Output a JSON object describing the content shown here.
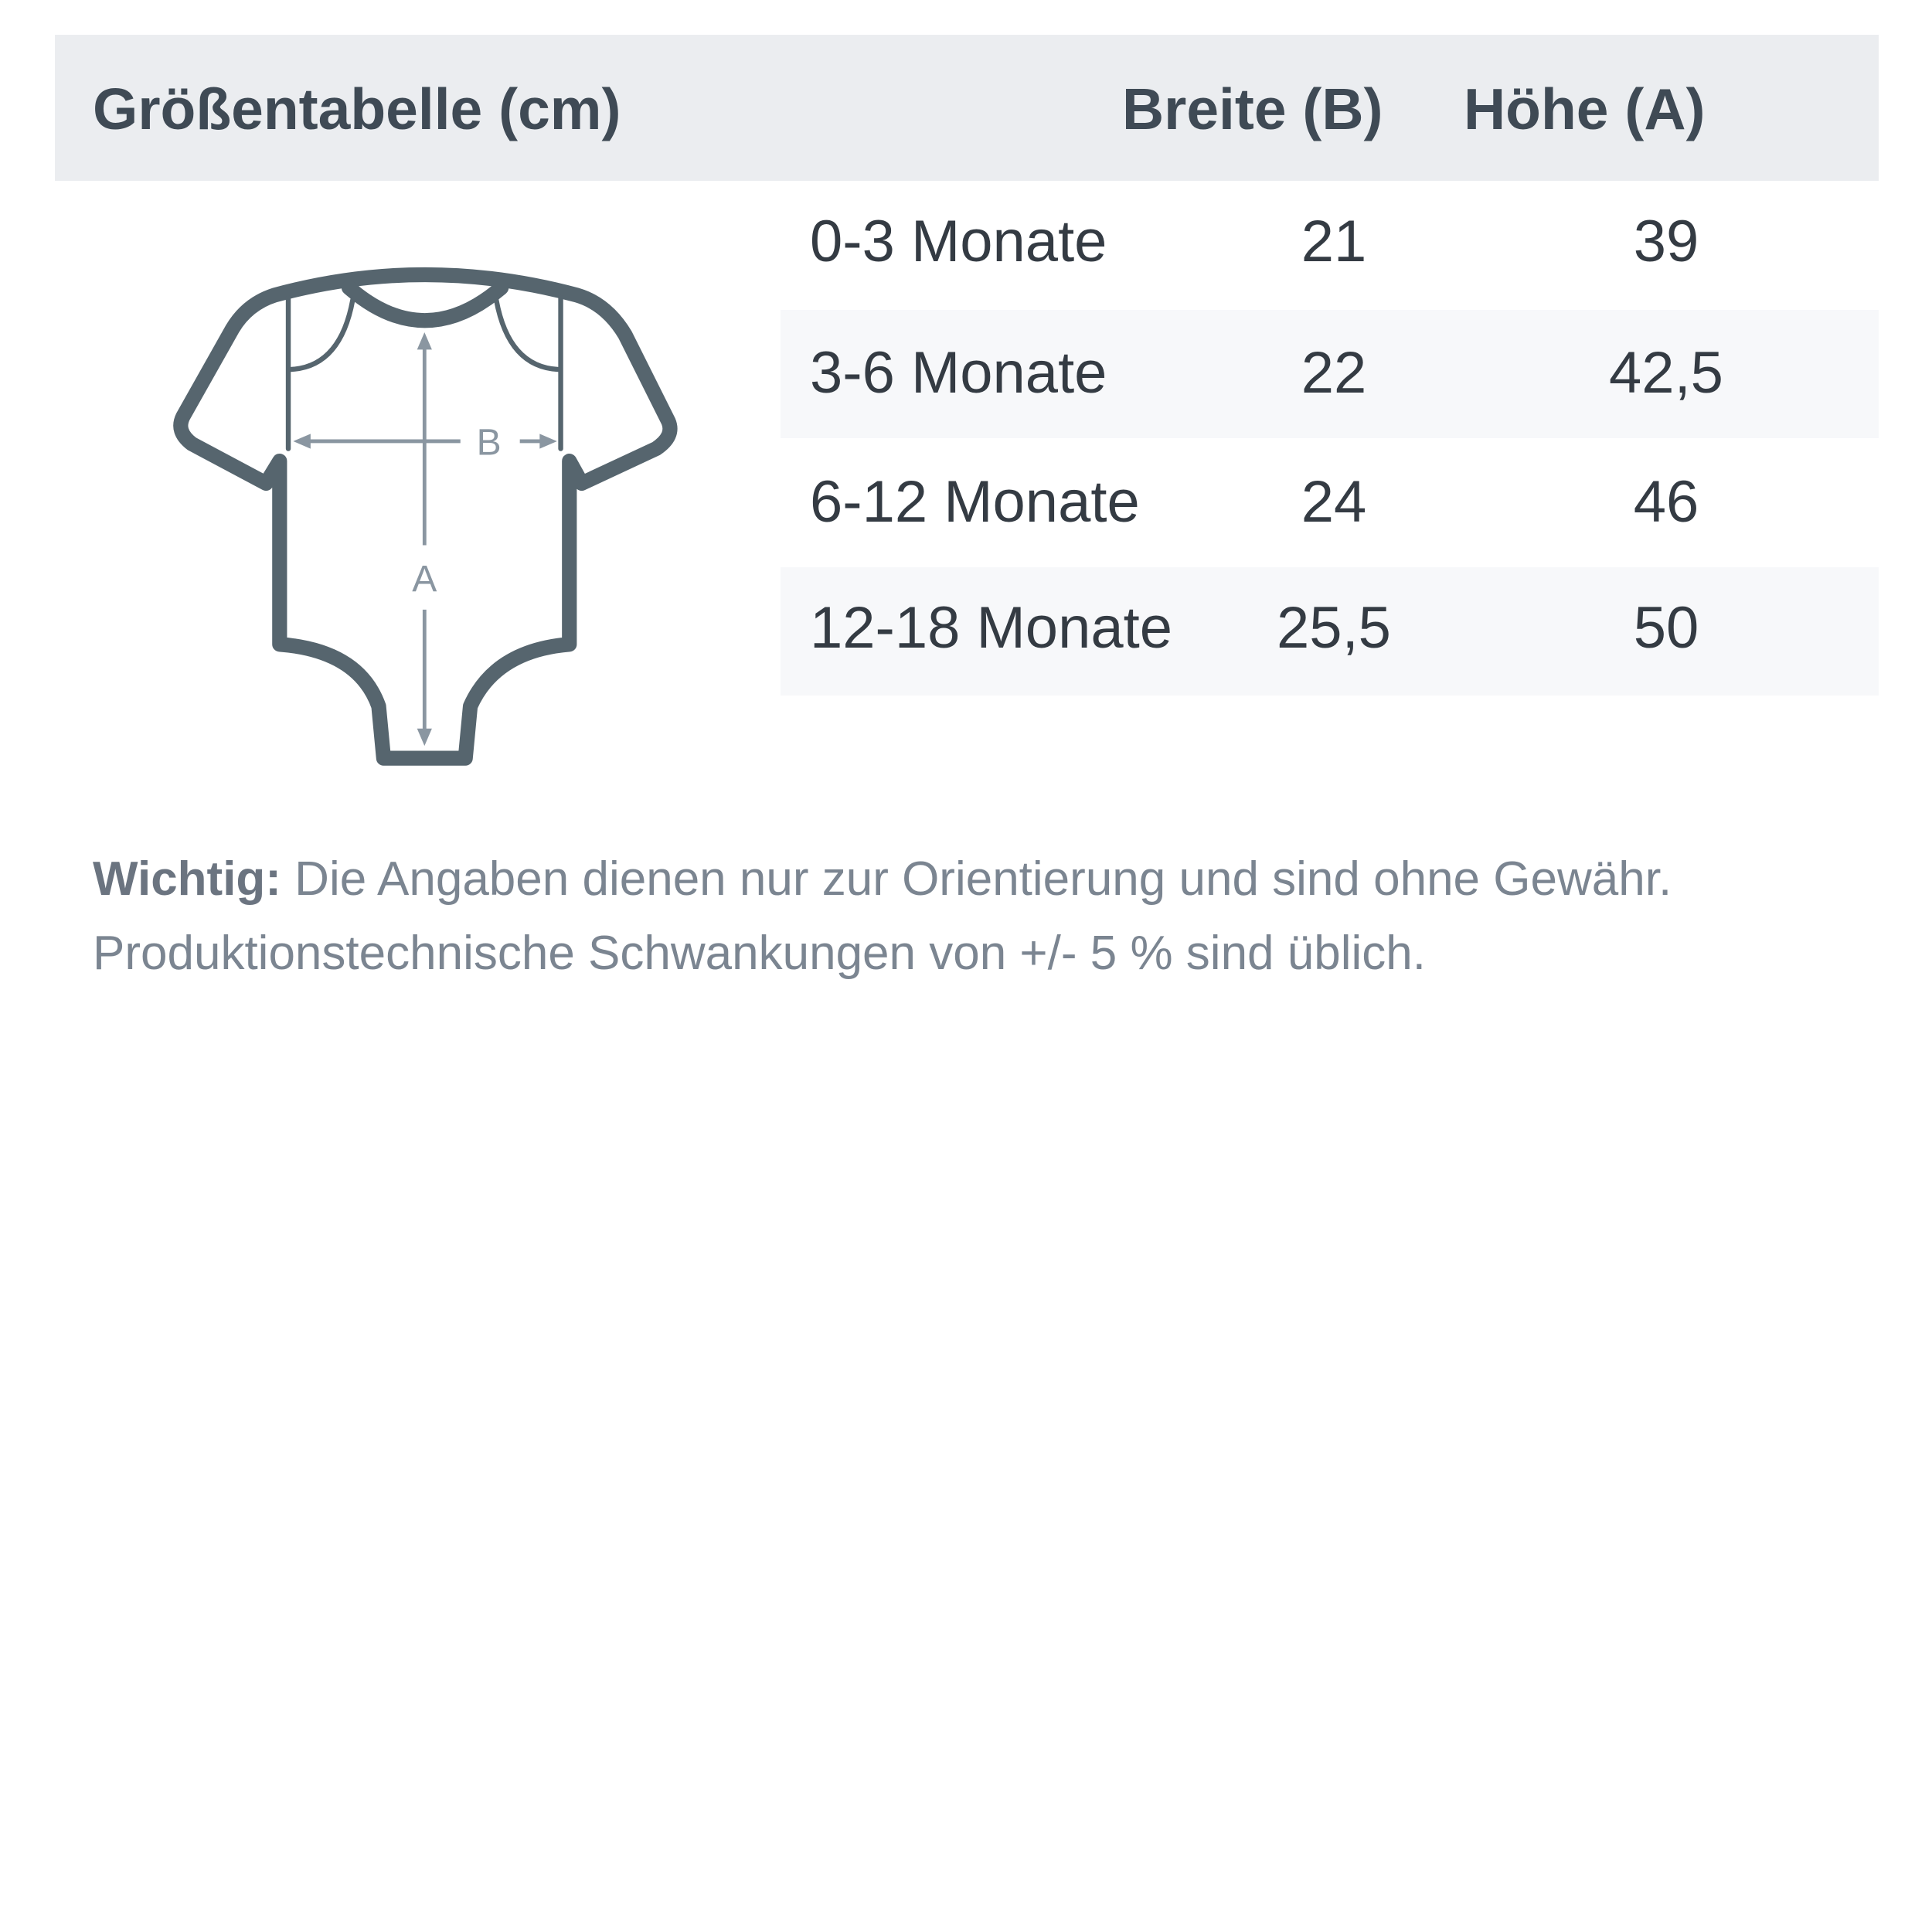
{
  "header": {
    "title": "Größentabelle (cm)",
    "col_width": "Breite (B)",
    "col_height": "Höhe (A)"
  },
  "rows": [
    {
      "size": "0-3 Monate",
      "width": "21",
      "height": "39"
    },
    {
      "size": "3-6 Monate",
      "width": "22",
      "height": "42,5"
    },
    {
      "size": "6-12 Monate",
      "width": "24",
      "height": "46"
    },
    {
      "size": "12-18 Monate",
      "width": "25,5",
      "height": "50"
    }
  ],
  "diagram": {
    "label_b": "B",
    "label_a": "A",
    "icon": "baby-bodysuit-icon"
  },
  "note": {
    "label": "Wichtig:",
    "line1": " Die Angaben dienen nur zur Orientierung und sind ohne Gewähr.",
    "line2": "Produktionstechnische Schwankungen von +/- 5 % sind üblich."
  },
  "colors": {
    "header_bg": "#ebedf0",
    "stripe_bg": "#f7f8fa",
    "outline": "#56656e",
    "arrows": "#8a96a1"
  }
}
